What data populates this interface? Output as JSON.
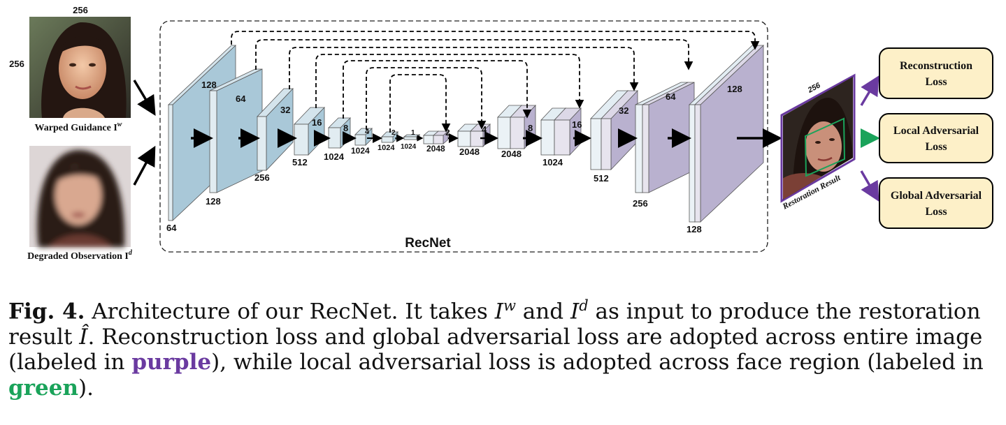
{
  "inputs": {
    "size_w": "256",
    "size_h": "256",
    "guidance_label": "Warped Guidance I",
    "guidance_sup": "w",
    "degraded_label": "Degraded Observation I",
    "degraded_sup": "d"
  },
  "network": {
    "name": "RecNet",
    "encoder": [
      {
        "channels": "64",
        "size": "128"
      },
      {
        "channels": "128",
        "size": "64"
      },
      {
        "channels": "256",
        "size": "32"
      },
      {
        "channels": "512",
        "size": "16"
      },
      {
        "channels": "1024",
        "size": "8"
      },
      {
        "channels": "1024",
        "size": "4"
      },
      {
        "channels": "1024",
        "size": "2"
      },
      {
        "channels": "1024",
        "size": "1"
      }
    ],
    "decoder": [
      {
        "channels": "2048",
        "size": "2"
      },
      {
        "channels": "2048",
        "size": "4"
      },
      {
        "channels": "2048",
        "size": "8"
      },
      {
        "channels": "1024",
        "size": "16"
      },
      {
        "channels": "512",
        "size": "32"
      },
      {
        "channels": "256",
        "size": "64"
      },
      {
        "channels": "128",
        "size": "128"
      }
    ]
  },
  "output": {
    "size": "256",
    "label": "Restoration Result"
  },
  "losses": [
    {
      "label_1": "Reconstruction",
      "label_2": "Loss",
      "color": "#6a3aa0"
    },
    {
      "label_1": "Local Adversarial",
      "label_2": "Loss",
      "color": "#1aa35a"
    },
    {
      "label_1": "Global Adversarial",
      "label_2": "Loss",
      "color": "#6a3aa0"
    }
  ],
  "colors": {
    "encoder": "#a9c8d8",
    "decoder": "#b9b1cf",
    "loss_box": "#fdf0c8",
    "purple": "#6a3aa0",
    "green": "#1aa35a"
  },
  "caption": {
    "fig": "Fig. 4.",
    "t1": " Architecture of our RecNet. It takes ",
    "iw": "I",
    "iw_sup": "w",
    "t2": " and ",
    "id": "I",
    "id_sup": "d",
    "t3": " as input to produce the restoration result ",
    "ihat": "Î",
    "t4": ". Reconstruction loss and global adversarial loss are adopted across entire image (labeled in ",
    "purple": "purple",
    "t5": "), while local adversarial loss is adopted across face region (labeled in ",
    "green": "green",
    "t6": ")."
  }
}
